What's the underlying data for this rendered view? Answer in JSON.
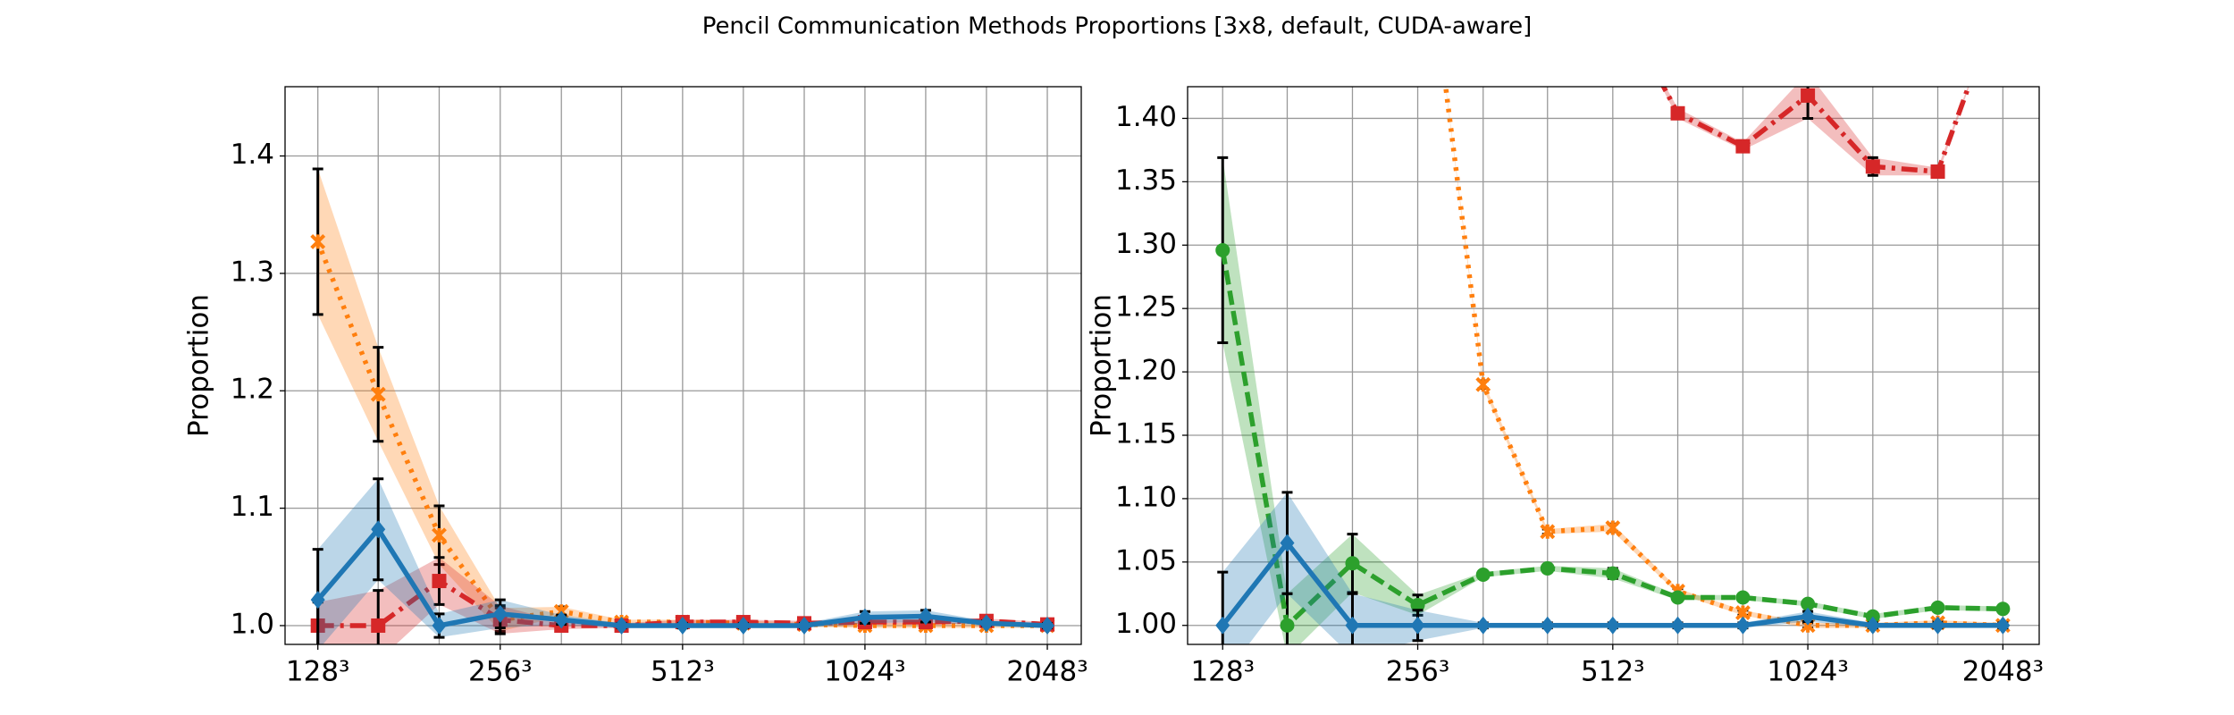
{
  "title": "Pencil Communication Methods Proportions [3x8, default, CUDA-aware]",
  "chart_data": [
    {
      "type": "line",
      "ylabel": "Proportion",
      "xscale": "log",
      "grid": true,
      "x": [
        128,
        161,
        203,
        256,
        323,
        406,
        512,
        645,
        813,
        1024,
        1290,
        1625,
        2048
      ],
      "xlim": [
        113,
        2330
      ],
      "xticks": [
        {
          "value": 128,
          "label": "128³"
        },
        {
          "value": 256,
          "label": "256³"
        },
        {
          "value": 512,
          "label": "512³"
        },
        {
          "value": 1024,
          "label": "1024³"
        },
        {
          "value": 2048,
          "label": "2048³"
        }
      ],
      "ylim": [
        0.984,
        1.459
      ],
      "yticks": [
        {
          "value": 1,
          "label": "1.0"
        },
        1.1,
        1.2,
        1.3,
        1.4
      ],
      "series": [
        {
          "color": "#ff7f0e",
          "linestyle": "dotted",
          "marker": "star",
          "values": [
            1.327,
            1.197,
            1.077,
            1.005,
            1.012,
            1.003,
            1.003,
            1.002,
            1.001,
            1.0,
            1.0,
            1.0,
            1.0
          ],
          "errors": [
            0.062,
            0.04,
            0.025,
            0.01,
            0.004,
            0.002,
            0.002,
            0.002,
            0.002,
            0.002,
            0.002,
            0.002,
            0.002
          ]
        },
        {
          "color": "#d62728",
          "linestyle": "dashdot",
          "marker": "square",
          "values": [
            1.0,
            1.0,
            1.038,
            1.005,
            1.0,
            1.0,
            1.003,
            1.003,
            1.002,
            1.003,
            1.003,
            1.004,
            1.001
          ],
          "errors": [
            0.02,
            0.03,
            0.02,
            0.012,
            0.003,
            0.002,
            0.002,
            0.002,
            0.002,
            0.002,
            0.002,
            0.002,
            0.002
          ]
        },
        {
          "color": "#1f77b4",
          "linestyle": "solid",
          "marker": "diamond",
          "values": [
            1.022,
            1.082,
            1.0,
            1.01,
            1.005,
            1.0,
            1.0,
            1.0,
            1.0,
            1.007,
            1.008,
            1.002,
            1.0
          ],
          "errors": [
            0.043,
            0.043,
            0.01,
            0.012,
            0.004,
            0.002,
            0.002,
            0.002,
            0.002,
            0.005,
            0.005,
            0.002,
            0.002
          ]
        }
      ]
    },
    {
      "type": "line",
      "ylabel": "Proportion",
      "xscale": "log",
      "grid": true,
      "x": [
        128,
        161,
        203,
        256,
        323,
        406,
        512,
        645,
        813,
        1024,
        1290,
        1625,
        2048
      ],
      "xlim": [
        113,
        2330
      ],
      "xticks": [
        {
          "value": 128,
          "label": "128³"
        },
        {
          "value": 256,
          "label": "256³"
        },
        {
          "value": 512,
          "label": "512³"
        },
        {
          "value": 1024,
          "label": "1024³"
        },
        {
          "value": 2048,
          "label": "2048³"
        }
      ],
      "ylim": [
        0.985,
        1.425
      ],
      "yticks": [
        {
          "value": 1,
          "label": "1.00"
        },
        1.05,
        {
          "value": 1.1,
          "label": "1.10"
        },
        1.15,
        {
          "value": 1.2,
          "label": "1.20"
        },
        1.25,
        {
          "value": 1.3,
          "label": "1.30"
        },
        1.35,
        {
          "value": 1.4,
          "label": "1.40"
        }
      ],
      "series": [
        {
          "color": "#ff7f0e",
          "linestyle": "dotted",
          "marker": "star",
          "values": [
            null,
            null,
            null,
            1.6,
            1.19,
            1.074,
            1.077,
            1.027,
            1.01,
            1.0,
            1.0,
            1.002,
            1.0
          ],
          "errors": [
            null,
            null,
            null,
            0.0,
            0.003,
            0.002,
            0.003,
            0.002,
            0.002,
            0.002,
            0.002,
            0.002,
            0.002
          ]
        },
        {
          "color": "#d62728",
          "linestyle": "dashdot",
          "marker": "square",
          "values": [
            null,
            null,
            null,
            null,
            null,
            null,
            1.5,
            1.404,
            1.378,
            1.418,
            1.362,
            1.358,
            1.5
          ],
          "errors": [
            null,
            null,
            null,
            null,
            null,
            null,
            0.0,
            0.004,
            0.003,
            0.018,
            0.007,
            0.003,
            0.0
          ]
        },
        {
          "color": "#2ca02c",
          "linestyle": "dashed",
          "marker": "circle",
          "values": [
            1.296,
            1.0,
            1.049,
            1.016,
            1.04,
            1.045,
            1.041,
            1.022,
            1.022,
            1.017,
            1.007,
            1.014,
            1.013
          ],
          "errors": [
            0.073,
            0.025,
            0.023,
            0.008,
            0.002,
            0.002,
            0.004,
            0.002,
            0.002,
            0.002,
            0.002,
            0.002,
            0.002
          ]
        },
        {
          "color": "#1f77b4",
          "linestyle": "solid",
          "marker": "diamond",
          "values": [
            1.0,
            1.065,
            1.0,
            1.0,
            1.0,
            1.0,
            1.0,
            1.0,
            1.0,
            1.007,
            1.0,
            1.0,
            1.0
          ],
          "errors": [
            0.042,
            0.04,
            0.025,
            0.012,
            0.002,
            0.002,
            0.002,
            0.002,
            0.002,
            0.004,
            0.002,
            0.002,
            0.002
          ]
        }
      ]
    }
  ]
}
